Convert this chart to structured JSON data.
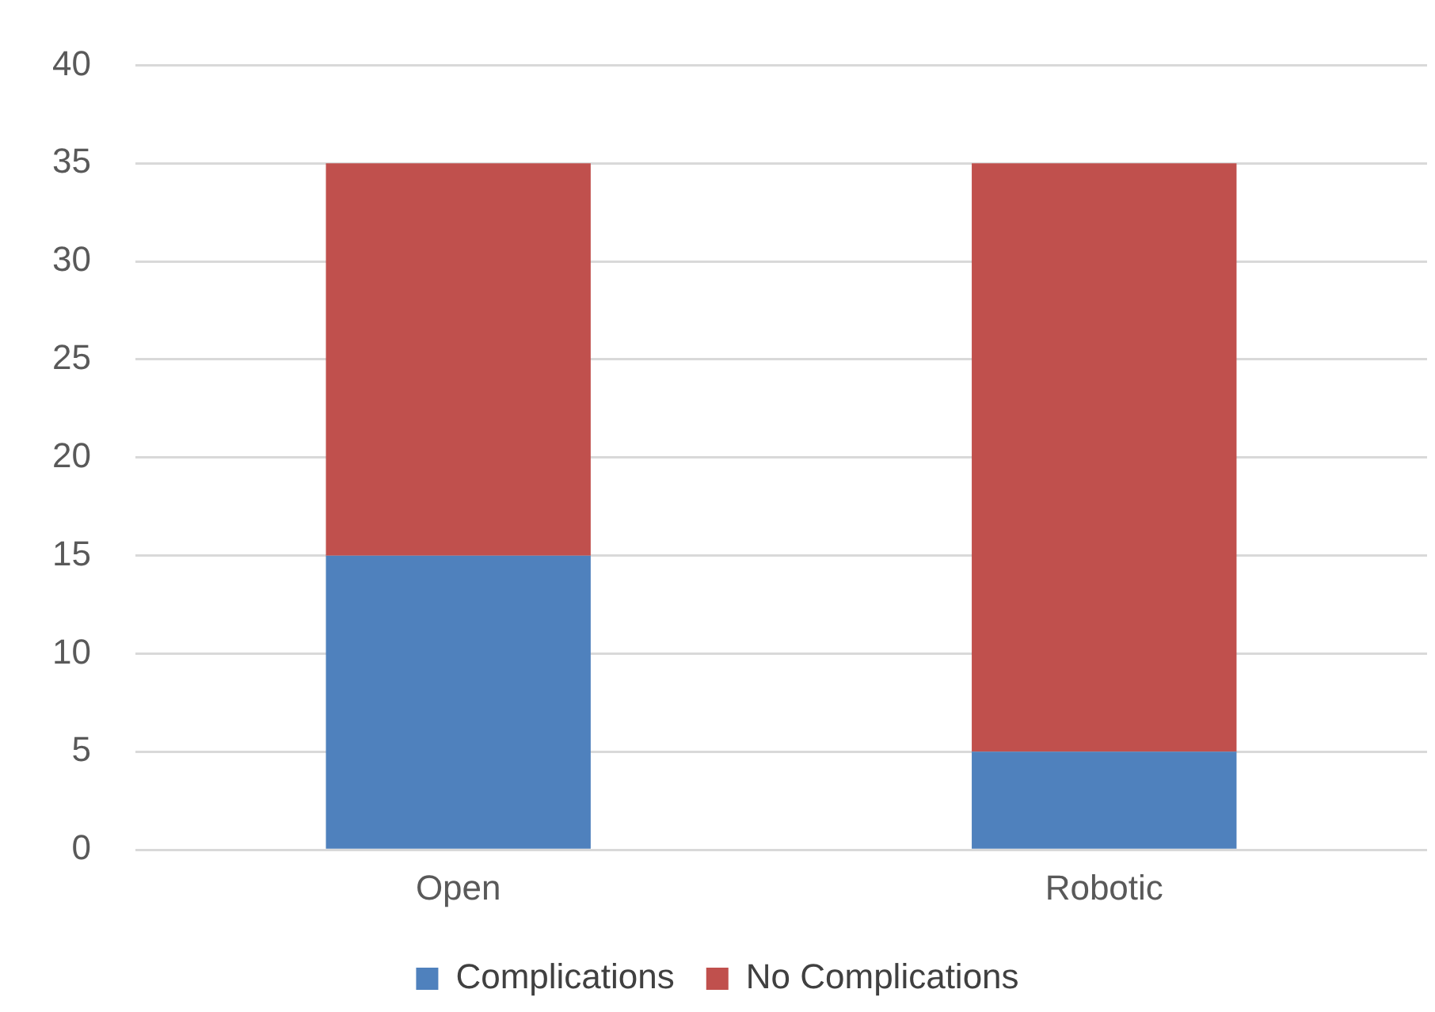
{
  "chart_data": {
    "type": "bar",
    "stacked": true,
    "categories": [
      "Open",
      "Robotic"
    ],
    "series": [
      {
        "name": "Complications",
        "color": "#4f81bd",
        "values": [
          15,
          5
        ]
      },
      {
        "name": "No Complications",
        "color": "#c0504d",
        "values": [
          20,
          30
        ]
      }
    ],
    "ylim": [
      0,
      40
    ],
    "yticks": [
      0,
      5,
      10,
      15,
      20,
      25,
      30,
      35,
      40
    ],
    "grid": "y",
    "legend": "bottom"
  }
}
